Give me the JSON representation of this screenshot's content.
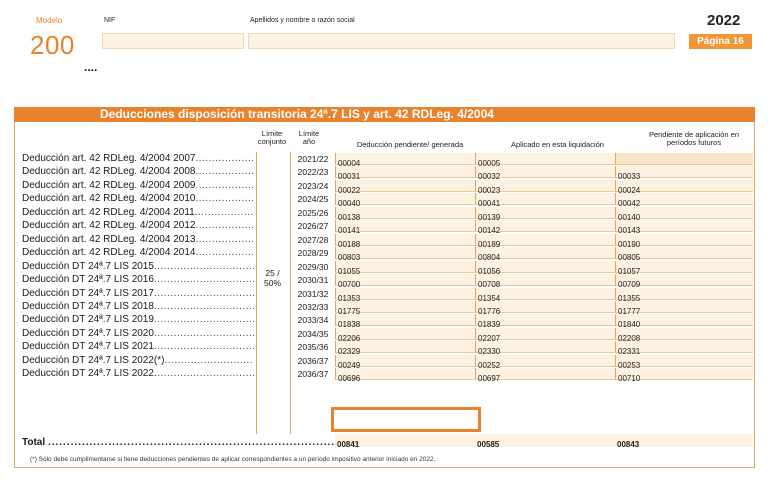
{
  "header": {
    "modelo_label": "Modelo",
    "modelo_number": "200",
    "nif_label": "NIF",
    "name_label": "Apellidos y nombre o razón social",
    "year": "2022",
    "page": "Página 16",
    "ellipsis": "...."
  },
  "section": {
    "title": "Deducciones disposición transitoria 24ª.7 LIS y art. 42 RDLeg. 4/2004",
    "col_limite_conjunto": "Límite conjunto",
    "col_limite_anio": "Límite año",
    "col_deduccion": "Deducción pendiente/ generada",
    "col_aplicado": "Aplicado en esta liquidación",
    "col_pendiente": "Pendiente de aplicación en períodos futuros",
    "limite_conjunto_value": "25 / 50%"
  },
  "rows": [
    {
      "label": "Deducción art. 42 RDLeg. 4/2004 2007",
      "year": "2021/22",
      "c1": "00004",
      "c2": "00005",
      "c3": ""
    },
    {
      "label": "Deducción art. 42 RDLeg. 4/2004 2008",
      "year": "2022/23",
      "c1": "00031",
      "c2": "00032",
      "c3": "00033"
    },
    {
      "label": "Deducción art. 42 RDLeg. 4/2004 2009",
      "year": "2023/24",
      "c1": "00022",
      "c2": "00023",
      "c3": "00024"
    },
    {
      "label": "Deducción art. 42 RDLeg. 4/2004 2010",
      "year": "2024/25",
      "c1": "00040",
      "c2": "00041",
      "c3": "00042"
    },
    {
      "label": "Deducción art. 42 RDLeg. 4/2004 2011",
      "year": "2025/26",
      "c1": "00138",
      "c2": "00139",
      "c3": "00140"
    },
    {
      "label": "Deducción art. 42 RDLeg. 4/2004 2012",
      "year": "2026/27",
      "c1": "00141",
      "c2": "00142",
      "c3": "00143"
    },
    {
      "label": "Deducción art. 42 RDLeg. 4/2004 2013",
      "year": "2027/28",
      "c1": "00188",
      "c2": "00189",
      "c3": "00190"
    },
    {
      "label": "Deducción art. 42 RDLeg. 4/2004 2014",
      "year": "2028/29",
      "c1": "00803",
      "c2": "00804",
      "c3": "00805"
    },
    {
      "label": "Deducción DT 24ª.7 LIS 2015",
      "year": "2029/30",
      "c1": "01055",
      "c2": "01056",
      "c3": "01057"
    },
    {
      "label": "Deducción DT 24ª.7 LIS 2016",
      "year": "2030/31",
      "c1": "00700",
      "c2": "00708",
      "c3": "00709"
    },
    {
      "label": "Deducción DT 24ª.7 LIS 2017",
      "year": "2031/32",
      "c1": "01353",
      "c2": "01354",
      "c3": "01355"
    },
    {
      "label": "Deducción DT 24ª.7 LIS 2018",
      "year": "2032/33",
      "c1": "01775",
      "c2": "01776",
      "c3": "01777"
    },
    {
      "label": "Deducción DT 24ª.7 LIS 2019",
      "year": "2033/34",
      "c1": "01838",
      "c2": "01839",
      "c3": "01840"
    },
    {
      "label": "Deducción DT 24ª.7 LIS 2020",
      "year": "2034/35",
      "c1": "02206",
      "c2": "02207",
      "c3": "02208"
    },
    {
      "label": "Deducción DT 24ª.7 LIS 2021",
      "year": "2035/36",
      "c1": "02329",
      "c2": "02330",
      "c3": "02331"
    },
    {
      "label": "Deducción DT 24ª.7 LIS 2022(*)",
      "year": "2036/37",
      "c1": "00249",
      "c2": "00252",
      "c3": "00253"
    },
    {
      "label": "Deducción DT 24ª.7 LIS 2022",
      "year": "2036/37",
      "c1": "00696",
      "c2": "00697",
      "c3": "00710"
    }
  ],
  "total": {
    "label": "Total",
    "c1": "00841",
    "c2": "00585",
    "c3": "00843"
  },
  "footnote": "(*)  Sólo debe cumplimentarse si tiene deducciones pendientes de aplicar correspondientes a un período impositivo anterior iniciado en 2022."
}
